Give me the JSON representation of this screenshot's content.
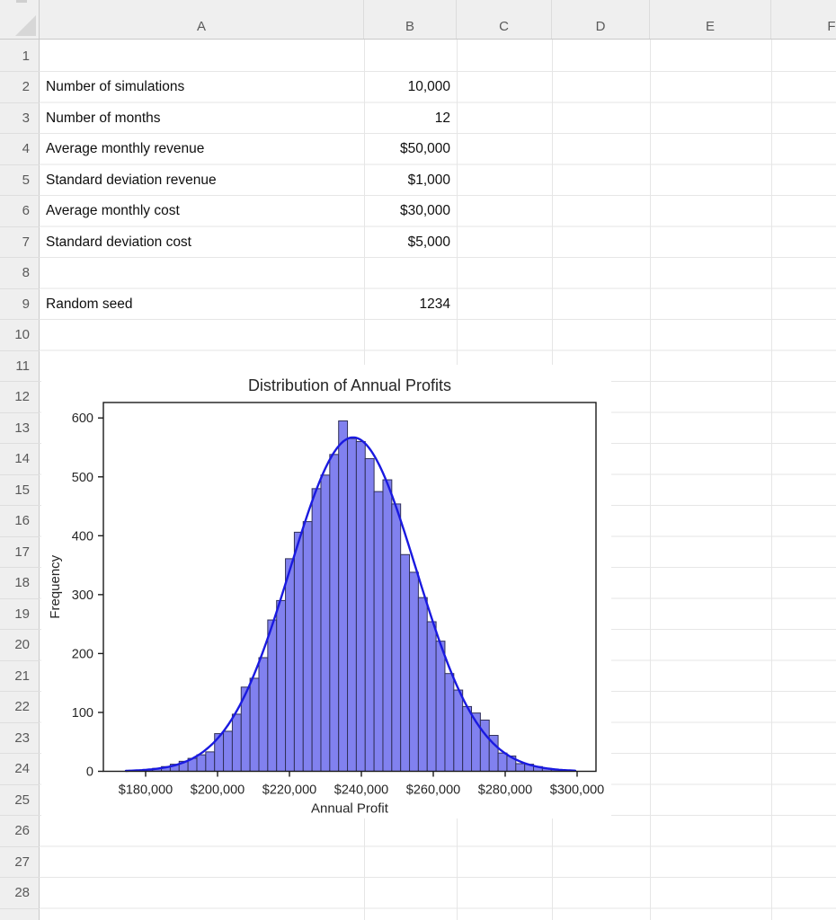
{
  "sheet": {
    "column_headers": [
      "A",
      "B",
      "C",
      "D",
      "E",
      "F"
    ],
    "row_headers": [
      "1",
      "2",
      "3",
      "4",
      "5",
      "6",
      "7",
      "8",
      "9",
      "10",
      "11",
      "12",
      "13",
      "14",
      "15",
      "16",
      "17",
      "18",
      "19",
      "20",
      "21",
      "22",
      "23",
      "24",
      "25",
      "26",
      "27",
      "28"
    ],
    "cells": [
      {
        "row": 2,
        "label": "Number of simulations",
        "value": "10,000"
      },
      {
        "row": 3,
        "label": "Number of months",
        "value": "12"
      },
      {
        "row": 4,
        "label": "Average monthly revenue",
        "value": "$50,000"
      },
      {
        "row": 5,
        "label": "Standard deviation revenue",
        "value": "$1,000"
      },
      {
        "row": 6,
        "label": "Average monthly cost",
        "value": "$30,000"
      },
      {
        "row": 7,
        "label": "Standard deviation cost",
        "value": "$5,000"
      },
      {
        "row": 9,
        "label": "Random seed",
        "value": "1234"
      }
    ]
  },
  "colors": {
    "header_bg": "#efefef",
    "header_text": "#5a5a5a",
    "gridline": "#e6e6e6",
    "bar_fill": "#8181ef",
    "bar_edge": "#30305a",
    "curve": "#1a1ae0",
    "frame": "#1a1a1a",
    "chart_text": "#262626"
  },
  "chart_data": {
    "type": "bar",
    "subtype": "histogram-with-density-curve",
    "title": "Distribution of Annual Profits",
    "xlabel": "Annual Profit",
    "ylabel": "Frequency",
    "grid": false,
    "legend": "none",
    "ylim": [
      0,
      626
    ],
    "xlim": [
      169000,
      305500
    ],
    "y_ticks": [
      0,
      100,
      200,
      300,
      400,
      500,
      600
    ],
    "x_ticks": [
      {
        "value": 180000,
        "label": "$180,000"
      },
      {
        "value": 200000,
        "label": "$200,000"
      },
      {
        "value": 220000,
        "label": "$220,000"
      },
      {
        "value": 240000,
        "label": "$240,000"
      },
      {
        "value": 260000,
        "label": "$260,000"
      },
      {
        "value": 280000,
        "label": "$280,000"
      },
      {
        "value": 300000,
        "label": "$300,000"
      }
    ],
    "histogram": {
      "bin_start": 177000,
      "bin_width": 2464,
      "frequencies": [
        2,
        3,
        5,
        8,
        12,
        17,
        22,
        28,
        33,
        64,
        68,
        97,
        143,
        158,
        193,
        257,
        290,
        361,
        406,
        424,
        480,
        503,
        538,
        595,
        565,
        560,
        531,
        475,
        495,
        454,
        368,
        338,
        295,
        254,
        221,
        166,
        138,
        110,
        99,
        87,
        61,
        31,
        26,
        13,
        12,
        8,
        5,
        3
      ]
    },
    "curve": {
      "shape": "normal",
      "mu": 237700,
      "sigma": 17500,
      "peak": 567,
      "x_start": 174500,
      "x_end": 299500
    }
  }
}
